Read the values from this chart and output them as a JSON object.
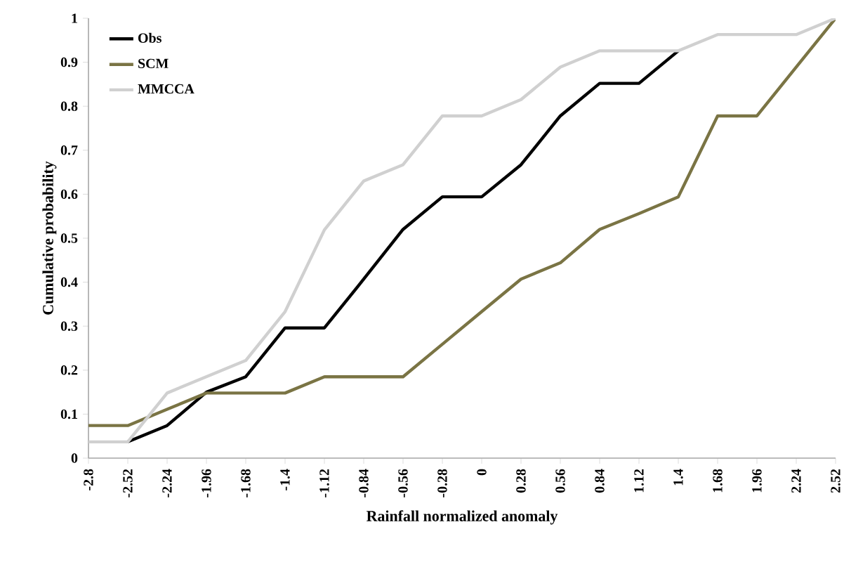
{
  "chart_data": {
    "type": "line",
    "xlabel": "Rainfall normalized anomaly",
    "ylabel": "Cumulative probability",
    "x": [
      -2.8,
      -2.52,
      -2.24,
      -1.96,
      -1.68,
      -1.4,
      -1.12,
      -0.84,
      -0.56,
      -0.28,
      0,
      0.28,
      0.56,
      0.84,
      1.12,
      1.4,
      1.68,
      1.96,
      2.24,
      2.52
    ],
    "series": [
      {
        "name": "Obs",
        "color": "#000000",
        "values": [
          null,
          0.037,
          0.074,
          0.15,
          0.185,
          0.296,
          0.296,
          0.407,
          0.52,
          0.594,
          0.594,
          0.667,
          0.778,
          0.852,
          0.852,
          0.926,
          null,
          null,
          null,
          null
        ]
      },
      {
        "name": "SCM",
        "color": "#7a7444",
        "values": [
          0.074,
          0.074,
          0.111,
          0.148,
          0.148,
          0.148,
          0.185,
          0.185,
          0.185,
          0.259,
          0.333,
          0.407,
          0.444,
          0.52,
          0.556,
          0.594,
          0.778,
          0.778,
          0.889,
          1.0
        ]
      },
      {
        "name": "MMCCA",
        "color": "#d0d0d0",
        "values": [
          0.037,
          0.037,
          0.148,
          0.185,
          0.222,
          0.333,
          0.519,
          0.63,
          0.667,
          0.778,
          0.778,
          0.815,
          0.889,
          0.926,
          0.926,
          0.926,
          0.963,
          0.963,
          0.963,
          1.0
        ]
      }
    ],
    "xlim": [
      -2.8,
      2.52
    ],
    "ylim": [
      0,
      1
    ],
    "xticks": [
      -2.8,
      -2.52,
      -2.24,
      -1.96,
      -1.68,
      -1.4,
      -1.12,
      -0.84,
      -0.56,
      -0.28,
      0,
      0.28,
      0.56,
      0.84,
      1.12,
      1.4,
      1.68,
      1.96,
      2.24,
      2.52
    ],
    "yticks": [
      0,
      0.1,
      0.2,
      0.3,
      0.4,
      0.5,
      0.6,
      0.7,
      0.8,
      0.9,
      1
    ],
    "legend": "top left",
    "marker": "none",
    "line_style": "solid"
  }
}
